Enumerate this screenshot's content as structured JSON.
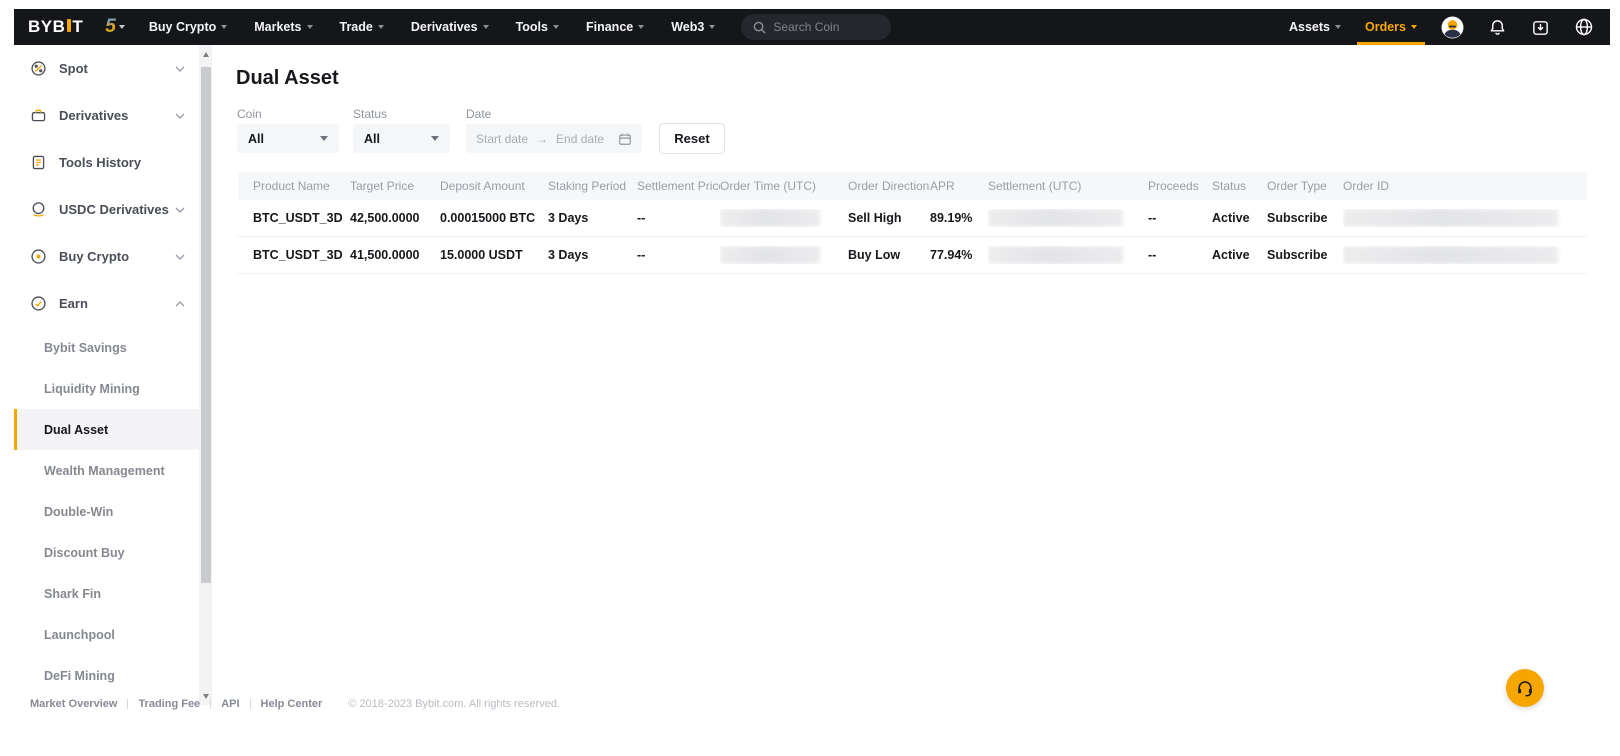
{
  "brand": {
    "logo_text_1": "BYB",
    "logo_text_2": "T",
    "anniversary": "5"
  },
  "nav": {
    "items": [
      "Buy Crypto",
      "Markets",
      "Trade",
      "Derivatives",
      "Tools",
      "Finance",
      "Web3"
    ],
    "search_placeholder": "Search Coin",
    "assets_label": "Assets",
    "orders_label": "Orders"
  },
  "sidebar": {
    "items": [
      {
        "label": "Spot",
        "icon": "spot-icon",
        "chevron": "down"
      },
      {
        "label": "Derivatives",
        "icon": "derivatives-icon",
        "chevron": "down"
      },
      {
        "label": "Tools History",
        "icon": "tools-history-icon",
        "chevron": null
      },
      {
        "label": "USDC Derivatives",
        "icon": "usdc-derivatives-icon",
        "chevron": "down"
      },
      {
        "label": "Buy Crypto",
        "icon": "buy-crypto-icon",
        "chevron": "down"
      },
      {
        "label": "Earn",
        "icon": "earn-icon",
        "chevron": "up"
      }
    ],
    "earn_subitems": [
      {
        "label": "Bybit Savings",
        "active": false
      },
      {
        "label": "Liquidity Mining",
        "active": false
      },
      {
        "label": "Dual Asset",
        "active": true
      },
      {
        "label": "Wealth Management",
        "active": false
      },
      {
        "label": "Double-Win",
        "active": false
      },
      {
        "label": "Discount Buy",
        "active": false
      },
      {
        "label": "Shark Fin",
        "active": false
      },
      {
        "label": "Launchpool",
        "active": false
      },
      {
        "label": "DeFi Mining",
        "active": false
      }
    ]
  },
  "page": {
    "title": "Dual Asset"
  },
  "filters": {
    "coin_label": "Coin",
    "coin_value": "All",
    "status_label": "Status",
    "status_value": "All",
    "date_label": "Date",
    "start_placeholder": "Start date",
    "end_placeholder": "End date",
    "reset_label": "Reset"
  },
  "table": {
    "columns": [
      "Product Name",
      "Target Price",
      "Deposit Amount",
      "Staking Period",
      "Settlement Price",
      "Order Time (UTC)",
      "Order Direction",
      "APR",
      "Settlement (UTC)",
      "Proceeds",
      "Status",
      "Order Type",
      "Order ID"
    ],
    "rows": [
      {
        "cells": [
          {
            "text": "BTC_USDT_3D"
          },
          {
            "text": "42,500.0000"
          },
          {
            "text": "0.00015000 BTC"
          },
          {
            "text": "3 Days"
          },
          {
            "text": "--"
          },
          {
            "redacted": true
          },
          {
            "text": "Sell High"
          },
          {
            "text": "89.19%"
          },
          {
            "redacted": true
          },
          {
            "text": "--"
          },
          {
            "text": "Active"
          },
          {
            "text": "Subscribe"
          },
          {
            "redacted": true
          }
        ]
      },
      {
        "cells": [
          {
            "text": "BTC_USDT_3D"
          },
          {
            "text": "41,500.0000"
          },
          {
            "text": "15.0000 USDT"
          },
          {
            "text": "3 Days"
          },
          {
            "text": "--"
          },
          {
            "redacted": true
          },
          {
            "text": "Buy Low"
          },
          {
            "text": "77.94%"
          },
          {
            "redacted": true
          },
          {
            "text": "--"
          },
          {
            "text": "Active"
          },
          {
            "text": "Subscribe"
          },
          {
            "redacted": true
          }
        ]
      }
    ]
  },
  "footer": {
    "links": [
      "Market Overview",
      "Trading Fee",
      "API",
      "Help Center"
    ],
    "copyright": "© 2018-2023 Bybit.com. All rights reserved."
  },
  "colors": {
    "accent": "#f7a600",
    "nav_bg": "#15161a"
  }
}
